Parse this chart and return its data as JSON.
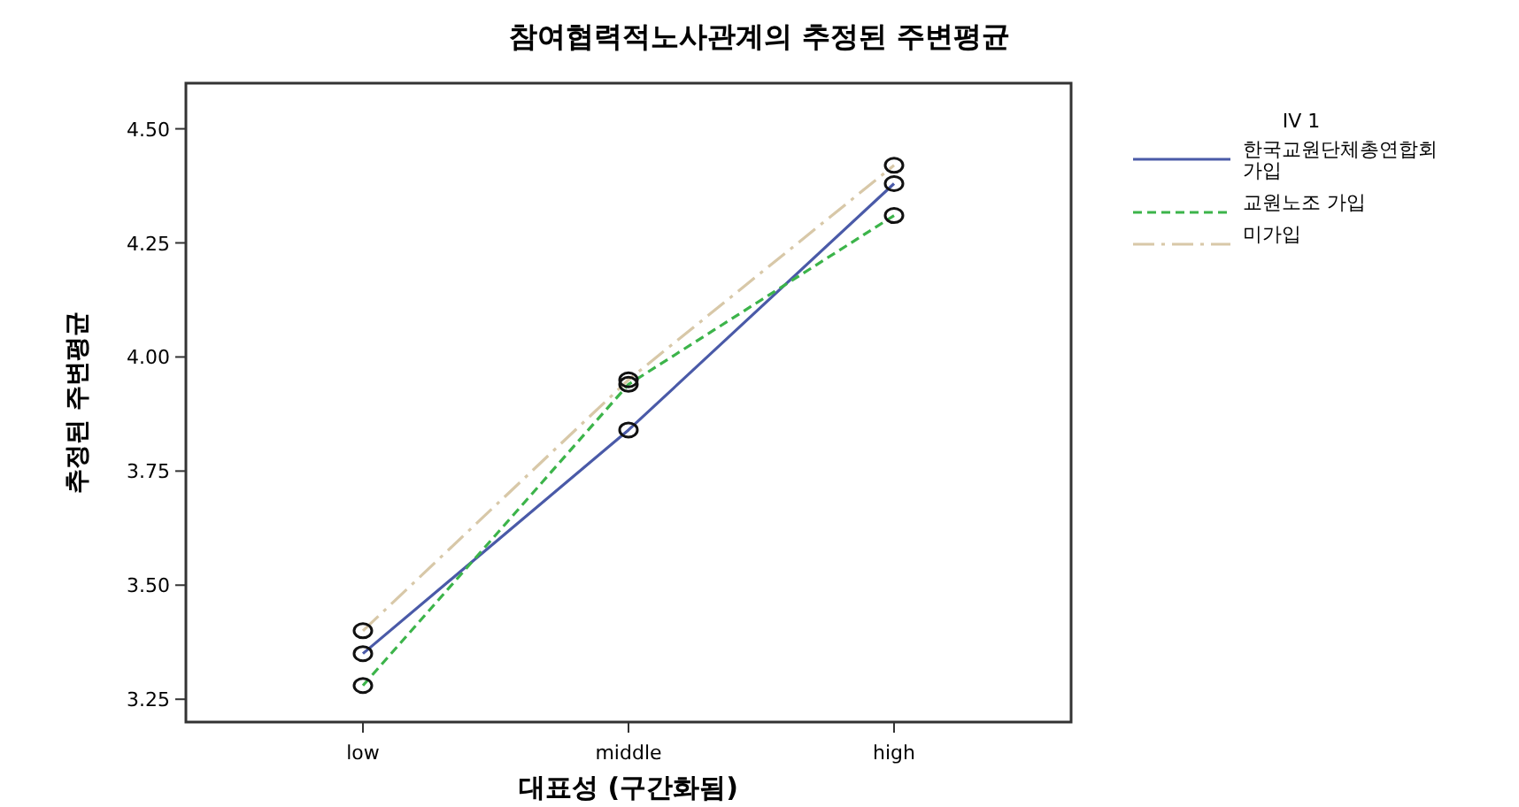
{
  "chart_data": {
    "type": "line",
    "title": "참여협력적노사관계의 추정된 주변평균",
    "xlabel": "대표성 (구간화됨)",
    "ylabel": "추정된 주변평균",
    "legend_title": "IV 1",
    "categories": [
      "low",
      "middle",
      "high"
    ],
    "series": [
      {
        "name": "한국교원단체총연합회 가입",
        "color": "#4a5aa8",
        "values": [
          3.35,
          3.84,
          4.38
        ],
        "line_style": "solid"
      },
      {
        "name": "교원노조 가입",
        "color": "#3cb44a",
        "values": [
          3.28,
          3.94,
          4.31
        ],
        "line_style": "dashed"
      },
      {
        "name": "미가입",
        "color": "#d8c8a8",
        "values": [
          3.4,
          3.95,
          4.42
        ],
        "line_style": "dashdot"
      }
    ],
    "ylim": [
      3.2,
      4.6
    ],
    "yticks": [
      {
        "value": 3.25,
        "label": "3.25"
      },
      {
        "value": 3.5,
        "label": "3.50"
      },
      {
        "value": 3.75,
        "label": "3.75"
      },
      {
        "value": 4.0,
        "label": "4.00"
      },
      {
        "value": 4.25,
        "label": "4.25"
      },
      {
        "value": 4.5,
        "label": "4.50"
      }
    ],
    "marker": "circle",
    "legend": "right",
    "grid": false
  }
}
